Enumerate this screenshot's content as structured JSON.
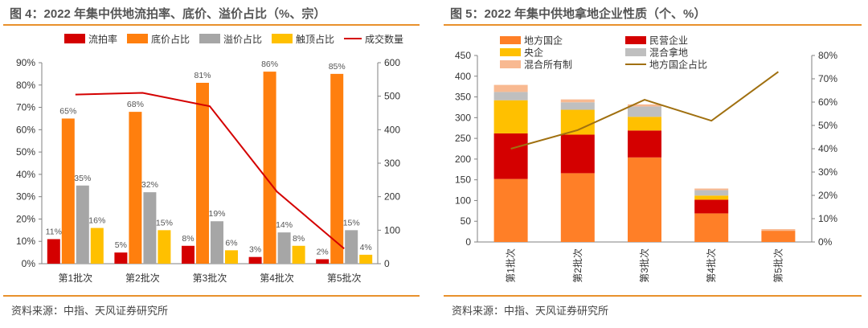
{
  "left": {
    "title": "图 4：2022 年集中供地流拍率、底价、溢价占比（%、宗）",
    "source": "资料来源：中指、天风证券研究所",
    "chart_data": {
      "type": "bar",
      "categories": [
        "第1批次",
        "第2批次",
        "第3批次",
        "第4批次",
        "第5批次"
      ],
      "series": [
        {
          "name": "流拍率",
          "axis": "left",
          "values": [
            11,
            5,
            8,
            3,
            2
          ],
          "labels": [
            "11%",
            "5%",
            "8%",
            "3%",
            "2%"
          ],
          "color": "#D40000"
        },
        {
          "name": "底价占比",
          "axis": "left",
          "values": [
            65,
            68,
            81,
            86,
            85
          ],
          "labels": [
            "65%",
            "68%",
            "81%",
            "86%",
            "85%"
          ],
          "color": "#FF7F0E"
        },
        {
          "name": "溢价占比",
          "axis": "left",
          "values": [
            35,
            32,
            19,
            14,
            15
          ],
          "labels": [
            "35%",
            "32%",
            "19%",
            "14%",
            "15%"
          ],
          "color": "#A6A6A6"
        },
        {
          "name": "触顶占比",
          "axis": "left",
          "values": [
            16,
            15,
            6,
            8,
            4
          ],
          "labels": [
            "16%",
            "15%",
            "6%",
            "8%",
            "4%"
          ],
          "color": "#FFC000"
        },
        {
          "name": "成交数量",
          "type": "line",
          "axis": "right",
          "values": [
            505,
            510,
            470,
            215,
            45
          ],
          "color": "#D40000"
        }
      ],
      "y_left": {
        "min": 0,
        "max": 90,
        "step": 10,
        "ticks": [
          "0%",
          "10%",
          "20%",
          "30%",
          "40%",
          "50%",
          "60%",
          "70%",
          "80%",
          "90%"
        ]
      },
      "y_right": {
        "min": 0,
        "max": 600,
        "step": 100,
        "ticks": [
          "0",
          "100",
          "200",
          "300",
          "400",
          "500",
          "600"
        ]
      },
      "legend_position": "top",
      "grid": false
    }
  },
  "right": {
    "title": "图 5：2022 年集中供地拿地企业性质（个、%）",
    "source": "资料来源：中指、天风证券研究所",
    "chart_data": {
      "type": "bar",
      "stacked": true,
      "categories": [
        "第1批次",
        "第2批次",
        "第3批次",
        "第4批次",
        "第5批次"
      ],
      "series": [
        {
          "name": "地方国企",
          "axis": "left",
          "values": [
            152,
            166,
            204,
            69,
            27
          ],
          "color": "#FF7F27"
        },
        {
          "name": "民营企业",
          "axis": "left",
          "values": [
            110,
            93,
            65,
            33,
            0
          ],
          "color": "#D40000"
        },
        {
          "name": "央企",
          "axis": "left",
          "values": [
            80,
            60,
            33,
            10,
            0
          ],
          "color": "#FFC000"
        },
        {
          "name": "混合拿地",
          "axis": "left",
          "values": [
            20,
            18,
            25,
            13,
            0
          ],
          "color": "#BFBFBF"
        },
        {
          "name": "混合所有制",
          "axis": "left",
          "values": [
            17,
            7,
            5,
            4,
            4
          ],
          "color": "#F8B991"
        },
        {
          "name": "地方国企占比",
          "type": "line",
          "axis": "right",
          "values": [
            40,
            48,
            61,
            52,
            73
          ],
          "color": "#A07010"
        }
      ],
      "y_left": {
        "min": 0,
        "max": 450,
        "step": 50,
        "ticks": [
          "0",
          "50",
          "100",
          "150",
          "200",
          "250",
          "300",
          "350",
          "400",
          "450"
        ]
      },
      "y_right": {
        "min": 0,
        "max": 80,
        "step": 10,
        "ticks": [
          "0%",
          "10%",
          "20%",
          "30%",
          "40%",
          "50%",
          "60%",
          "70%",
          "80%"
        ]
      },
      "legend_position": "top",
      "grid": false
    }
  }
}
